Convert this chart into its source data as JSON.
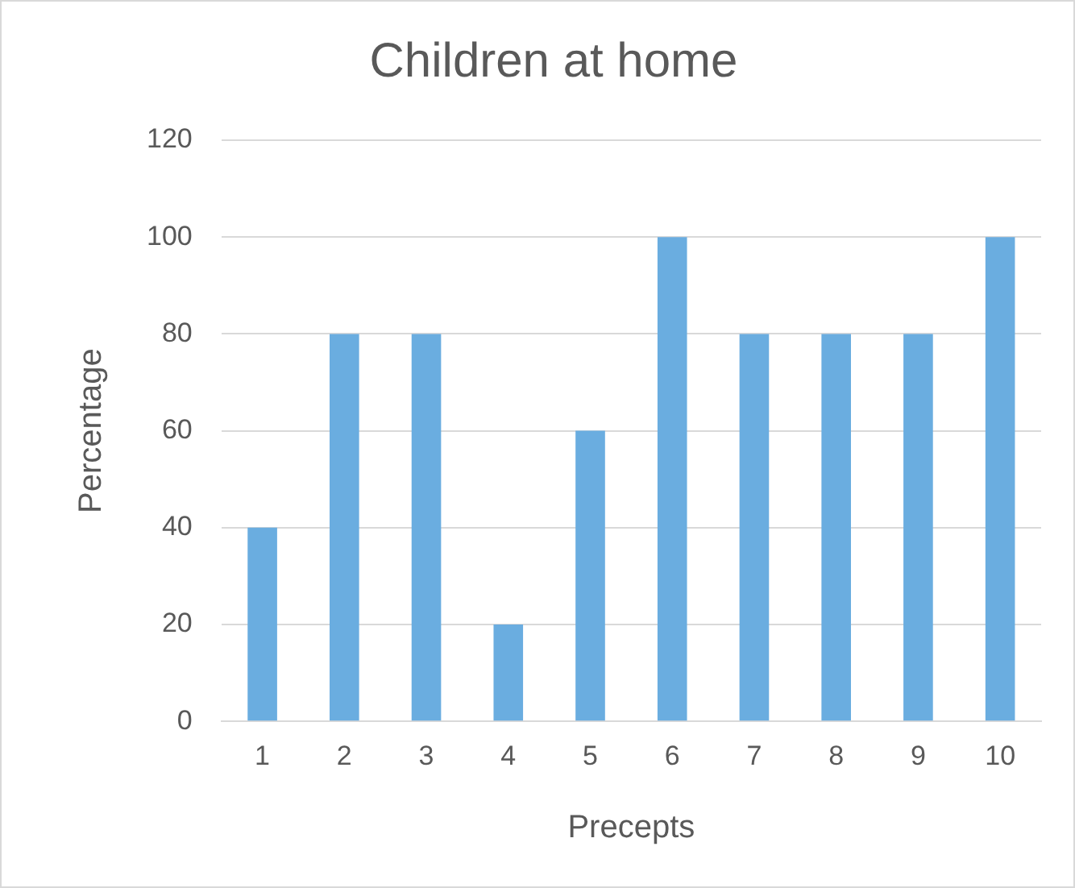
{
  "chart_data": {
    "type": "bar",
    "title": "Children at home",
    "xlabel": "Precepts",
    "ylabel": "Percentage",
    "categories": [
      "1",
      "2",
      "3",
      "4",
      "5",
      "6",
      "7",
      "8",
      "9",
      "10"
    ],
    "values": [
      40,
      80,
      80,
      20,
      60,
      100,
      80,
      80,
      80,
      100
    ],
    "color": "#6aade0",
    "ylim": [
      0,
      120
    ],
    "yticks": [
      0,
      20,
      40,
      60,
      80,
      100,
      120
    ],
    "grid": "y"
  }
}
